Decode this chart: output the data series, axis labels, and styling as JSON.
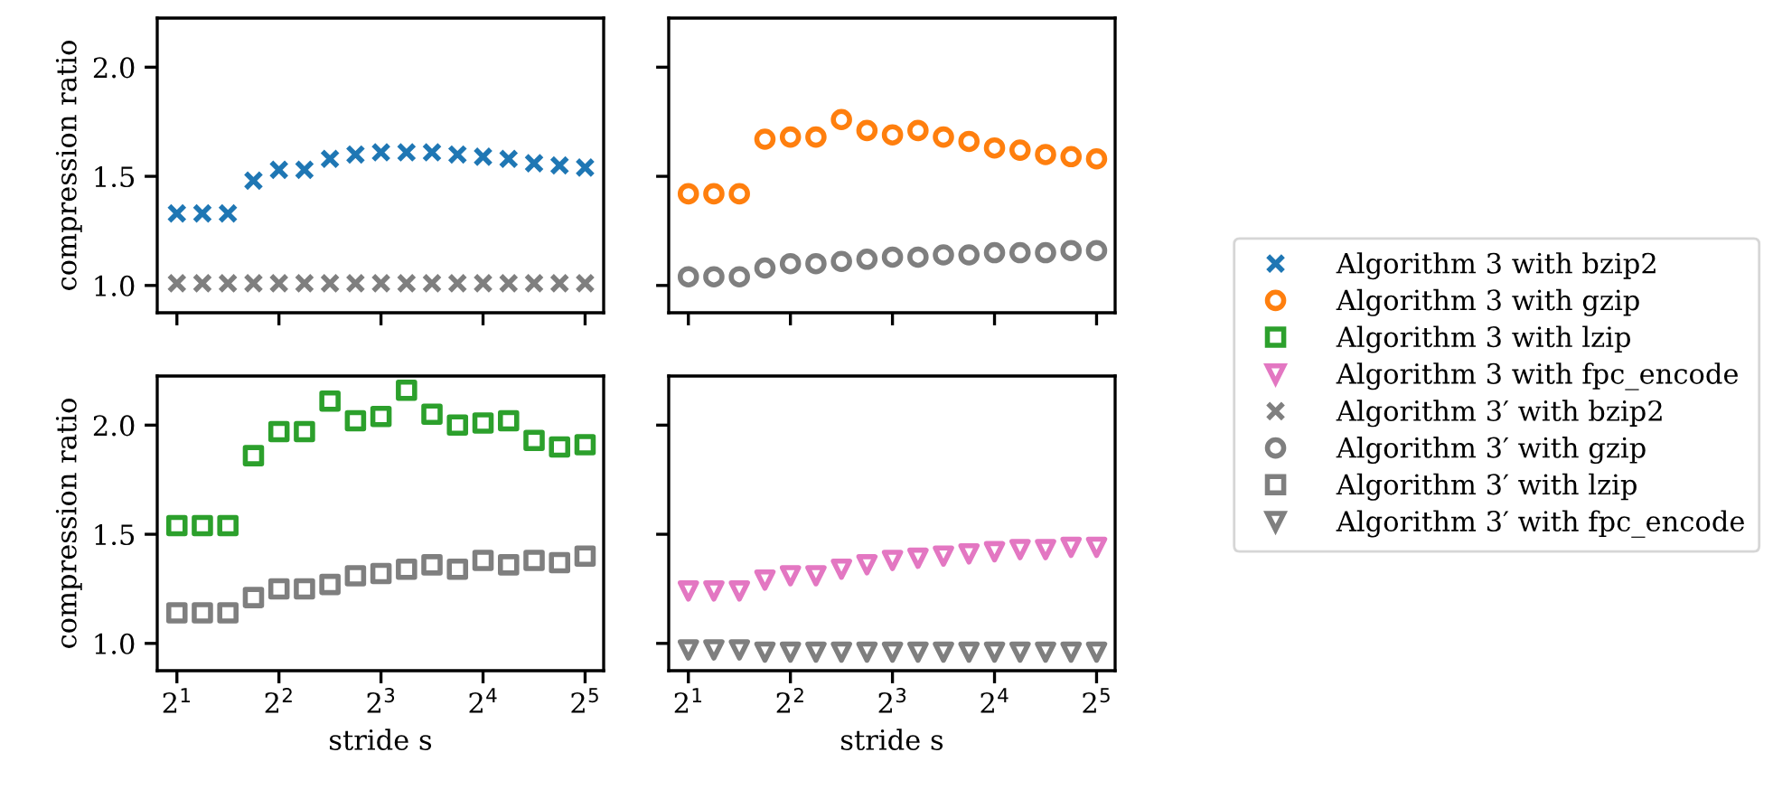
{
  "chart_data": [
    {
      "type": "scatter",
      "ylabel": "compression ratio",
      "tick_labels": "y",
      "legend": "right",
      "log": "x",
      "x": [
        2,
        2.378,
        2.828,
        3.364,
        4,
        4.757,
        5.657,
        6.727,
        8,
        9.514,
        11.31,
        13.45,
        16,
        19.03,
        22.63,
        26.91,
        32
      ],
      "xlim": [
        1.75,
        36.3
      ],
      "xticks": [
        {
          "value": 2,
          "label": null
        },
        {
          "value": 4,
          "label": null
        },
        {
          "value": 8,
          "label": null
        },
        {
          "value": 16,
          "label": null
        },
        {
          "value": 32,
          "label": null
        }
      ],
      "ylim": [
        0.875,
        2.225
      ],
      "yticks": [
        {
          "value": 1.0,
          "label": "1.0"
        },
        {
          "value": 1.5,
          "label": "1.5"
        },
        {
          "value": 2.0,
          "label": "2.0"
        }
      ],
      "series": [
        {
          "name": "Algorithm 3 with bzip2",
          "color": "#1f77b4",
          "marker": "cross",
          "values": [
            1.33,
            1.33,
            1.33,
            1.48,
            1.53,
            1.53,
            1.58,
            1.6,
            1.61,
            1.61,
            1.61,
            1.6,
            1.59,
            1.58,
            1.56,
            1.55,
            1.54
          ]
        },
        {
          "name": "Algorithm 3′ with bzip2",
          "color": "#7f7f7f",
          "marker": "cross",
          "values": [
            1.01,
            1.01,
            1.01,
            1.01,
            1.01,
            1.01,
            1.01,
            1.01,
            1.01,
            1.01,
            1.01,
            1.01,
            1.01,
            1.01,
            1.01,
            1.01,
            1.01
          ]
        }
      ]
    },
    {
      "type": "scatter",
      "tick_labels": false,
      "legend": "right",
      "log": "x",
      "x": [
        2,
        2.378,
        2.828,
        3.364,
        4,
        4.757,
        5.657,
        6.727,
        8,
        9.514,
        11.31,
        13.45,
        16,
        19.03,
        22.63,
        26.91,
        32
      ],
      "xlim": [
        1.75,
        36.3
      ],
      "xticks": [
        {
          "value": 2,
          "label": null
        },
        {
          "value": 4,
          "label": null
        },
        {
          "value": 8,
          "label": null
        },
        {
          "value": 16,
          "label": null
        },
        {
          "value": 32,
          "label": null
        }
      ],
      "ylim": [
        0.875,
        2.225
      ],
      "yticks": [
        {
          "value": 1.0,
          "label": null
        },
        {
          "value": 1.5,
          "label": null
        },
        {
          "value": 2.0,
          "label": null
        }
      ],
      "series": [
        {
          "name": "Algorithm 3 with gzip",
          "color": "#ff7f0e",
          "marker": "circle",
          "values": [
            1.42,
            1.42,
            1.42,
            1.67,
            1.68,
            1.68,
            1.76,
            1.71,
            1.69,
            1.71,
            1.68,
            1.66,
            1.63,
            1.62,
            1.6,
            1.59,
            1.58
          ]
        },
        {
          "name": "Algorithm 3′ with gzip",
          "color": "#7f7f7f",
          "marker": "circle",
          "values": [
            1.04,
            1.04,
            1.04,
            1.08,
            1.1,
            1.1,
            1.11,
            1.12,
            1.13,
            1.13,
            1.14,
            1.14,
            1.15,
            1.15,
            1.15,
            1.16,
            1.16
          ]
        }
      ]
    },
    {
      "type": "scatter",
      "ylabel": "compression ratio",
      "xlabel": "stride s",
      "legend": "right",
      "log": "x",
      "x": [
        2,
        2.378,
        2.828,
        3.364,
        4,
        4.757,
        5.657,
        6.727,
        8,
        9.514,
        11.31,
        13.45,
        16,
        19.03,
        22.63,
        26.91,
        32
      ],
      "xlim": [
        1.75,
        36.3
      ],
      "xticks": [
        {
          "value": 2,
          "label": "2$^{1}$"
        },
        {
          "value": 4,
          "label": "2$^{2}$"
        },
        {
          "value": 8,
          "label": "2$^{3}$"
        },
        {
          "value": 16,
          "label": "2$^{4}$"
        },
        {
          "value": 32,
          "label": "2$^{5}$"
        }
      ],
      "ylim": [
        0.875,
        2.225
      ],
      "yticks": [
        {
          "value": 1.0,
          "label": "1.0"
        },
        {
          "value": 1.5,
          "label": "1.5"
        },
        {
          "value": 2.0,
          "label": "2.0"
        }
      ],
      "series": [
        {
          "name": "Algorithm 3 with lzip",
          "color": "#2ca02c",
          "marker": "square",
          "values": [
            1.54,
            1.54,
            1.54,
            1.86,
            1.97,
            1.97,
            2.11,
            2.02,
            2.04,
            2.16,
            2.05,
            2.0,
            2.01,
            2.02,
            1.93,
            1.9,
            1.91
          ]
        },
        {
          "name": "Algorithm 3′ with lzip",
          "color": "#7f7f7f",
          "marker": "square",
          "values": [
            1.14,
            1.14,
            1.14,
            1.21,
            1.25,
            1.25,
            1.27,
            1.31,
            1.32,
            1.34,
            1.36,
            1.34,
            1.38,
            1.36,
            1.38,
            1.37,
            1.4
          ]
        }
      ]
    },
    {
      "type": "scatter",
      "xlabel": "stride s",
      "tick_labels": "x",
      "legend": "right",
      "log": "x",
      "x": [
        2,
        2.378,
        2.828,
        3.364,
        4,
        4.757,
        5.657,
        6.727,
        8,
        9.514,
        11.31,
        13.45,
        16,
        19.03,
        22.63,
        26.91,
        32
      ],
      "xlim": [
        1.75,
        36.3
      ],
      "xticks": [
        {
          "value": 2,
          "label": "2$^{1}$"
        },
        {
          "value": 4,
          "label": "2$^{2}$"
        },
        {
          "value": 8,
          "label": "2$^{3}$"
        },
        {
          "value": 16,
          "label": "2$^{4}$"
        },
        {
          "value": 32,
          "label": "2$^{5}$"
        }
      ],
      "ylim": [
        0.875,
        2.225
      ],
      "yticks": [
        {
          "value": 1.0,
          "label": null
        },
        {
          "value": 1.5,
          "label": null
        },
        {
          "value": 2.0,
          "label": null
        }
      ],
      "series": [
        {
          "name": "Algorithm 3 with fpc_encode",
          "color": "#e377c2",
          "marker": "triangle",
          "values": [
            1.24,
            1.24,
            1.24,
            1.29,
            1.31,
            1.31,
            1.34,
            1.36,
            1.38,
            1.39,
            1.4,
            1.41,
            1.42,
            1.43,
            1.43,
            1.44,
            1.44
          ]
        },
        {
          "name": "Algorithm 3′ with fpc_encode",
          "color": "#7f7f7f",
          "marker": "triangle",
          "values": [
            0.97,
            0.97,
            0.97,
            0.96,
            0.96,
            0.96,
            0.96,
            0.96,
            0.96,
            0.96,
            0.96,
            0.96,
            0.96,
            0.96,
            0.96,
            0.96,
            0.96
          ]
        }
      ]
    }
  ]
}
